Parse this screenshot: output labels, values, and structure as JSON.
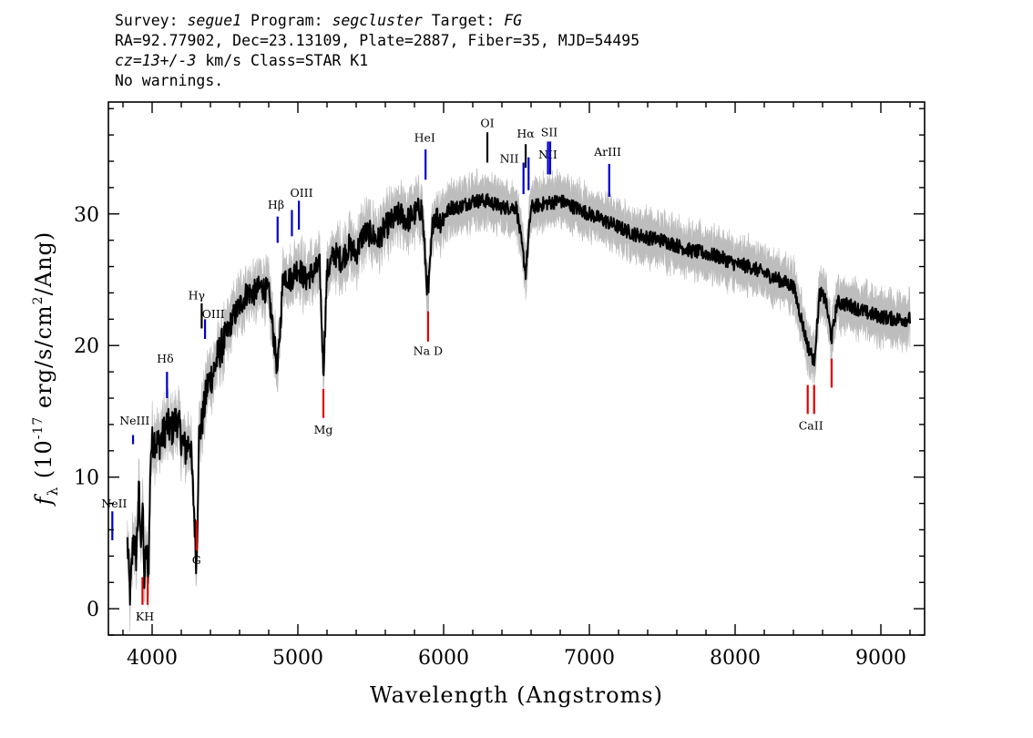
{
  "header": {
    "line1": {
      "survey_label": "Survey: ",
      "survey": "segue1",
      "program_label": " Program: ",
      "program": "segcluster",
      "target_label": " Target: ",
      "target": "FG"
    },
    "line2": "RA=92.77902, Dec=23.13109, Plate=2887, Fiber=35, MJD=54495",
    "line3": {
      "cz": "cz=13+/-3",
      "rest": " km/s Class=STAR K1"
    },
    "line4": "No warnings."
  },
  "chart_data": {
    "type": "line",
    "xlabel": "Wavelength (Angstroms)",
    "ylabel_prefix": "f",
    "ylabel_sub": "λ",
    "ylabel_open": " (10",
    "ylabel_exp": "-17",
    "ylabel_mid": " erg/s/cm",
    "ylabel_exp2": "2",
    "ylabel_close": "/Ang)",
    "xlim": [
      3700,
      9300
    ],
    "ylim": [
      -2,
      38.5
    ],
    "x_ticks": [
      4000,
      5000,
      6000,
      7000,
      8000,
      9000
    ],
    "y_ticks": [
      0,
      10,
      20,
      30
    ],
    "x_minor_step": 200,
    "y_minor_step": 2,
    "grid": false,
    "colors": {
      "flux": "#000000",
      "error": "#bdbdbd",
      "emission": "#0000cc",
      "absorption": "#dd0000",
      "neutral": "#000000"
    },
    "series": [
      {
        "x": [
          3830,
          3850,
          3870,
          3890,
          3910,
          3920,
          3935,
          3945,
          3960,
          3975,
          3990,
          4010,
          4040,
          4070,
          4100,
          4130,
          4170,
          4200,
          4230,
          4260,
          4290,
          4305,
          4320,
          4340,
          4380,
          4420,
          4460,
          4500,
          4550,
          4600,
          4650,
          4700,
          4750,
          4800,
          4861,
          4900,
          4950,
          5000,
          5050,
          5100,
          5150,
          5175,
          5200,
          5250,
          5300,
          5350,
          5400,
          5450,
          5500,
          5550,
          5600,
          5650,
          5700,
          5750,
          5800,
          5850,
          5893,
          5930,
          5980,
          6050,
          6100,
          6200,
          6300,
          6400,
          6500,
          6563,
          6600,
          6700,
          6800,
          6900,
          7000,
          7100,
          7200,
          7300,
          7400,
          7500,
          7600,
          7700,
          7800,
          7900,
          8000,
          8100,
          8200,
          8300,
          8400,
          8498,
          8542,
          8580,
          8620,
          8662,
          8700,
          8800,
          8900,
          9000,
          9100,
          9200
        ],
        "y": [
          5,
          0.8,
          5.5,
          4,
          9,
          5,
          8,
          2,
          4.5,
          2.5,
          12,
          13,
          12.5,
          13,
          14,
          13.5,
          14.5,
          13,
          12,
          13,
          7,
          3,
          13,
          14,
          17,
          18,
          19.5,
          20.5,
          22,
          23,
          24,
          24,
          24.5,
          24,
          18,
          25.5,
          25,
          26,
          25,
          25.5,
          26,
          18,
          25.5,
          27,
          26.5,
          27.5,
          27,
          28.5,
          28.5,
          28,
          29,
          29.5,
          30,
          29.5,
          30,
          30.5,
          23.5,
          30,
          29.5,
          30.5,
          30.5,
          31,
          31,
          30.5,
          30.5,
          25.5,
          30.5,
          30.8,
          31,
          30.5,
          30,
          29.5,
          29,
          28.5,
          28.2,
          28,
          27.6,
          27.2,
          27,
          26.7,
          26.2,
          26,
          25.5,
          25,
          24.5,
          20,
          18.8,
          24,
          23.5,
          20.5,
          23.3,
          23,
          22.5,
          22.2,
          22,
          22
        ]
      }
    ],
    "emission_lines": [
      {
        "label": "NeIII",
        "x": 3869,
        "y": [
          12.5,
          13.2
        ],
        "text_pos": [
          3880,
          14.0
        ]
      },
      {
        "label": "Hδ",
        "x": 4102,
        "y": [
          16.0,
          18.0
        ],
        "text_pos": [
          4090,
          18.7
        ]
      },
      {
        "label": "OIII",
        "x": 4363,
        "y": [
          20.5,
          22.0
        ],
        "text_pos": [
          4420,
          22.1
        ]
      },
      {
        "label": "Hβ",
        "x": 4861,
        "y": [
          27.8,
          29.8
        ],
        "text_pos": [
          4850,
          30.4
        ]
      },
      {
        "label": "OIII",
        "x": 4959,
        "y": [
          28.3,
          30.3
        ],
        "text_pos": null
      },
      {
        "label": "OIII",
        "x": 5007,
        "y": [
          28.8,
          31.0
        ],
        "text_pos": [
          5025,
          31.3
        ]
      },
      {
        "label": "HeI",
        "x": 5876,
        "y": [
          32.6,
          34.9
        ],
        "text_pos": [
          5870,
          35.5
        ]
      },
      {
        "label": "NII",
        "x": 6548,
        "y": [
          31.5,
          33.9
        ],
        "text_pos": [
          6450,
          33.9
        ]
      },
      {
        "label": "NII",
        "x": 6583,
        "y": [
          31.8,
          34.3
        ],
        "text_pos": [
          6715,
          34.2
        ]
      },
      {
        "label": "SII",
        "x": 6716,
        "y": [
          33.0,
          35.5
        ],
        "text_pos": [
          6725,
          35.9
        ]
      },
      {
        "label": "SII",
        "x": 6731,
        "y": [
          33.0,
          35.5
        ],
        "text_pos": null
      },
      {
        "label": "ArIII",
        "x": 7136,
        "y": [
          31.3,
          33.8
        ],
        "text_pos": [
          7125,
          34.4
        ]
      },
      {
        "label": "NeII",
        "x": 3727,
        "y": [
          5.2,
          7.4
        ],
        "text_pos": [
          3740,
          7.7
        ]
      }
    ],
    "neutral_lines": [
      {
        "label": "Hγ",
        "x": 4340,
        "y": [
          21.3,
          23.2
        ],
        "text_pos": [
          4305,
          23.5
        ]
      },
      {
        "label": "OI",
        "x": 6300,
        "y": [
          33.9,
          36.2
        ],
        "text_pos": [
          6300,
          36.6
        ]
      },
      {
        "label": "Hα",
        "x": 6563,
        "y": [
          33.5,
          35.3
        ],
        "text_pos": [
          6563,
          35.8
        ]
      }
    ],
    "absorption_lines": [
      {
        "label": "K",
        "x": 3934,
        "y": [
          0.3,
          2.4
        ],
        "text_pos": null
      },
      {
        "label": "H",
        "x": 3969,
        "y": [
          0.3,
          2.4
        ],
        "text_pos": null
      },
      {
        "label": "G",
        "x": 4305,
        "y": [
          4.4,
          6.7
        ],
        "text_pos": [
          4305,
          3.4
        ]
      },
      {
        "label": "Mg",
        "x": 5175,
        "y": [
          14.5,
          16.7
        ],
        "text_pos": [
          5175,
          13.3
        ]
      },
      {
        "label": "Na D",
        "x": 5893,
        "y": [
          20.3,
          22.6
        ],
        "text_pos": [
          5893,
          19.3
        ]
      },
      {
        "label": "CaII",
        "x": 8498,
        "y": [
          14.8,
          17.0
        ],
        "text_pos": [
          8520,
          13.6
        ]
      },
      {
        "label": "CaII",
        "x": 8542,
        "y": [
          14.8,
          17.0
        ],
        "text_pos": null
      },
      {
        "label": "CaII",
        "x": 8662,
        "y": [
          16.8,
          19.0
        ],
        "text_pos": null
      }
    ],
    "kh_label": {
      "label": "KH",
      "text_pos": [
        3950,
        -0.9
      ]
    }
  }
}
